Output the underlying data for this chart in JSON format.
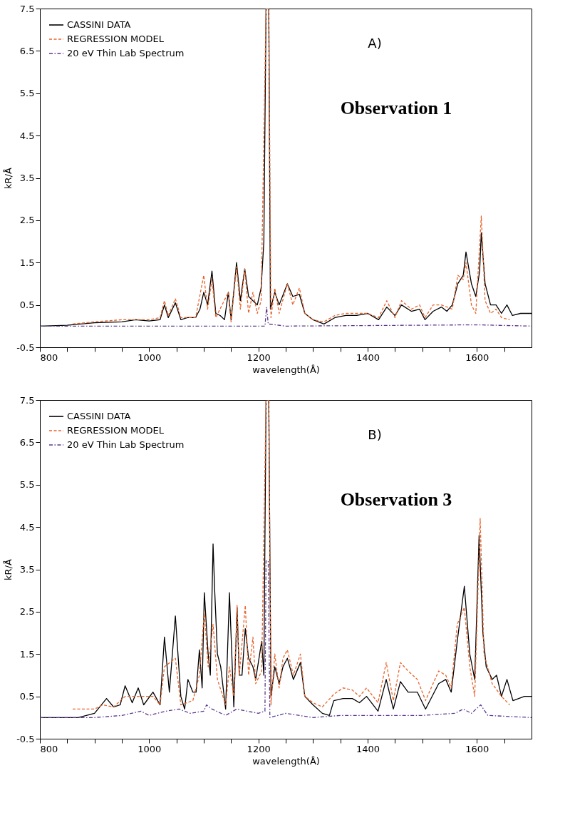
{
  "chart_data": [
    {
      "type": "line",
      "xlabel": "wavelength(Å)",
      "ylabel": "kR/Å",
      "annotations": [
        "A)",
        "Observation 1"
      ],
      "legend": "top left",
      "grid": false,
      "xlim": [
        800,
        1700
      ],
      "ylim": [
        -0.5,
        7.5
      ],
      "xticks": [
        800,
        {
          "value": 850,
          "label": null
        },
        {
          "value": 900,
          "label": null
        },
        {
          "value": 950,
          "label": null
        },
        1000,
        {
          "value": 1050,
          "label": null
        },
        {
          "value": 1100,
          "label": null
        },
        {
          "value": 1150,
          "label": null
        },
        1200,
        {
          "value": 1250,
          "label": null
        },
        {
          "value": 1300,
          "label": null
        },
        {
          "value": 1350,
          "label": null
        },
        1400,
        {
          "value": 1450,
          "label": null
        },
        {
          "value": 1500,
          "label": null
        },
        {
          "value": 1550,
          "label": null
        },
        1600,
        {
          "value": 1650,
          "label": null
        }
      ],
      "yticks": [
        -0.5,
        0.5,
        1.5,
        2.5,
        3.5,
        4.5,
        5.5,
        6.5,
        7.5
      ],
      "series": [
        {
          "name": "CASSINI DATA",
          "color": "#000000",
          "line_style": "solid",
          "x": [
            800,
            850,
            900,
            950,
            975,
            1000,
            1020,
            1028,
            1035,
            1048,
            1058,
            1070,
            1085,
            1093,
            1100,
            1107,
            1115,
            1122,
            1130,
            1138,
            1145,
            1150,
            1160,
            1167,
            1175,
            1182,
            1190,
            1198,
            1205,
            1210,
            1214,
            1219,
            1222,
            1230,
            1238,
            1253,
            1263,
            1275,
            1285,
            1300,
            1320,
            1340,
            1360,
            1380,
            1400,
            1420,
            1435,
            1450,
            1462,
            1480,
            1495,
            1505,
            1520,
            1535,
            1545,
            1555,
            1565,
            1575,
            1580,
            1590,
            1598,
            1605,
            1608,
            1615,
            1625,
            1635,
            1645,
            1655,
            1665,
            1680,
            1700
          ],
          "values": [
            0.0,
            0.02,
            0.08,
            0.1,
            0.15,
            0.12,
            0.15,
            0.5,
            0.2,
            0.55,
            0.15,
            0.2,
            0.2,
            0.4,
            0.8,
            0.5,
            1.3,
            0.3,
            0.25,
            0.15,
            0.8,
            0.15,
            1.5,
            0.6,
            1.35,
            0.7,
            0.6,
            0.5,
            0.9,
            2.0,
            7.5,
            7.5,
            0.4,
            0.8,
            0.5,
            1.0,
            0.7,
            0.75,
            0.3,
            0.15,
            0.05,
            0.2,
            0.25,
            0.25,
            0.3,
            0.15,
            0.45,
            0.25,
            0.5,
            0.35,
            0.4,
            0.15,
            0.35,
            0.45,
            0.35,
            0.5,
            1.0,
            1.2,
            1.75,
            1.0,
            0.7,
            1.3,
            2.2,
            1.0,
            0.5,
            0.5,
            0.3,
            0.5,
            0.25,
            0.3,
            0.3
          ]
        },
        {
          "name": "REGRESSION MODEL",
          "color": "#e8642c",
          "line_style": "dashed",
          "x": [
            860,
            900,
            950,
            1000,
            1020,
            1028,
            1035,
            1048,
            1058,
            1085,
            1100,
            1107,
            1115,
            1122,
            1145,
            1150,
            1160,
            1167,
            1175,
            1182,
            1190,
            1198,
            1205,
            1214,
            1219,
            1223,
            1230,
            1238,
            1253,
            1263,
            1275,
            1285,
            1300,
            1320,
            1340,
            1360,
            1380,
            1400,
            1420,
            1435,
            1450,
            1462,
            1480,
            1495,
            1505,
            1520,
            1535,
            1555,
            1565,
            1575,
            1580,
            1590,
            1598,
            1608,
            1615,
            1625,
            1635,
            1645,
            1660
          ],
          "values": [
            0.05,
            0.1,
            0.15,
            0.15,
            0.2,
            0.6,
            0.25,
            0.65,
            0.2,
            0.2,
            1.2,
            0.4,
            1.1,
            0.2,
            0.8,
            0.1,
            1.4,
            0.4,
            1.35,
            0.3,
            0.8,
            0.3,
            0.6,
            7.5,
            7.5,
            0.2,
            0.9,
            0.3,
            1.0,
            0.5,
            0.9,
            0.3,
            0.15,
            0.1,
            0.25,
            0.3,
            0.3,
            0.3,
            0.2,
            0.6,
            0.2,
            0.6,
            0.4,
            0.5,
            0.2,
            0.5,
            0.5,
            0.4,
            1.2,
            1.1,
            1.5,
            0.5,
            0.3,
            2.6,
            0.6,
            0.3,
            0.4,
            0.2,
            0.15
          ]
        },
        {
          "name": "20 eV Thin Lab  Spectrum",
          "color": "#5b3a8e",
          "line_style": "dotted",
          "x": [
            800,
            1000,
            1212,
            1215,
            1218,
            1250,
            1600,
            1700
          ],
          "values": [
            0.0,
            0.0,
            0.0,
            0.45,
            0.05,
            0.0,
            0.03,
            0.0
          ]
        }
      ]
    },
    {
      "type": "line",
      "xlabel": "wavelength(Å)",
      "ylabel": "kR/Å",
      "annotations": [
        "B)",
        "Observation 3"
      ],
      "legend": "top left",
      "grid": false,
      "xlim": [
        800,
        1700
      ],
      "ylim": [
        -0.5,
        7.5
      ],
      "xticks": [
        800,
        {
          "value": 850,
          "label": null
        },
        {
          "value": 900,
          "label": null
        },
        {
          "value": 950,
          "label": null
        },
        1000,
        {
          "value": 1050,
          "label": null
        },
        {
          "value": 1100,
          "label": null
        },
        {
          "value": 1150,
          "label": null
        },
        1200,
        {
          "value": 1250,
          "label": null
        },
        {
          "value": 1300,
          "label": null
        },
        {
          "value": 1350,
          "label": null
        },
        1400,
        {
          "value": 1450,
          "label": null
        },
        {
          "value": 1500,
          "label": null
        },
        {
          "value": 1550,
          "label": null
        },
        1600,
        {
          "value": 1650,
          "label": null
        }
      ],
      "yticks": [
        -0.5,
        0.5,
        1.5,
        2.5,
        3.5,
        4.5,
        5.5,
        6.5,
        7.5
      ],
      "series": [
        {
          "name": "CASSINI DATA",
          "color": "#000000",
          "line_style": "solid",
          "x": [
            800,
            870,
            900,
            922,
            935,
            947,
            956,
            969,
            980,
            990,
            1007,
            1020,
            1028,
            1037,
            1048,
            1058,
            1065,
            1071,
            1080,
            1086,
            1092,
            1097,
            1101,
            1108,
            1112,
            1117,
            1120,
            1125,
            1131,
            1140,
            1147,
            1155,
            1161,
            1165,
            1170,
            1176,
            1182,
            1190,
            1195,
            1206,
            1210,
            1214,
            1219,
            1223,
            1230,
            1238,
            1245,
            1253,
            1264,
            1277,
            1285,
            1300,
            1317,
            1330,
            1338,
            1355,
            1372,
            1385,
            1398,
            1419,
            1434,
            1447,
            1460,
            1474,
            1491,
            1506,
            1530,
            1543,
            1553,
            1564,
            1577,
            1587,
            1596,
            1604,
            1611,
            1617,
            1628,
            1636,
            1645,
            1655,
            1666,
            1687,
            1700
          ],
          "values": [
            0.0,
            0.0,
            0.1,
            0.45,
            0.25,
            0.3,
            0.75,
            0.35,
            0.7,
            0.3,
            0.6,
            0.3,
            1.9,
            0.6,
            2.4,
            0.5,
            0.2,
            0.9,
            0.6,
            0.6,
            1.6,
            0.7,
            2.95,
            1.5,
            1.0,
            4.1,
            3.0,
            1.5,
            1.2,
            0.2,
            2.95,
            0.25,
            2.6,
            1.0,
            1.0,
            2.1,
            1.4,
            1.2,
            0.9,
            1.8,
            1.0,
            7.5,
            7.5,
            0.5,
            1.2,
            0.8,
            1.2,
            1.4,
            0.9,
            1.3,
            0.5,
            0.3,
            0.1,
            0.05,
            0.4,
            0.45,
            0.45,
            0.35,
            0.5,
            0.15,
            0.9,
            0.2,
            0.85,
            0.6,
            0.6,
            0.2,
            0.8,
            0.9,
            0.6,
            1.8,
            3.1,
            1.5,
            0.9,
            4.3,
            2.0,
            1.2,
            0.9,
            1.0,
            0.5,
            0.9,
            0.4,
            0.5,
            0.5
          ]
        },
        {
          "name": "REGRESSION MODEL",
          "color": "#e8642c",
          "line_style": "dashed",
          "x": [
            860,
            900,
            915,
            935,
            956,
            980,
            1007,
            1020,
            1028,
            1048,
            1058,
            1080,
            1092,
            1101,
            1108,
            1117,
            1125,
            1140,
            1147,
            1155,
            1161,
            1165,
            1176,
            1182,
            1190,
            1195,
            1206,
            1214,
            1219,
            1223,
            1230,
            1238,
            1245,
            1253,
            1264,
            1277,
            1285,
            1300,
            1317,
            1338,
            1355,
            1372,
            1385,
            1398,
            1419,
            1434,
            1447,
            1460,
            1474,
            1491,
            1506,
            1530,
            1543,
            1553,
            1564,
            1577,
            1587,
            1596,
            1606,
            1613,
            1628,
            1645,
            1660
          ],
          "values": [
            0.2,
            0.2,
            0.3,
            0.25,
            0.5,
            0.5,
            0.5,
            0.3,
            1.2,
            1.4,
            0.3,
            0.4,
            1.0,
            2.5,
            1.2,
            2.2,
            0.9,
            0.3,
            1.2,
            0.5,
            2.65,
            1.0,
            2.65,
            1.0,
            1.9,
            0.8,
            1.1,
            7.5,
            7.5,
            0.3,
            1.5,
            0.7,
            1.4,
            1.6,
            1.0,
            1.5,
            0.5,
            0.35,
            0.25,
            0.55,
            0.7,
            0.65,
            0.5,
            0.7,
            0.35,
            1.3,
            0.4,
            1.3,
            1.1,
            0.9,
            0.4,
            1.1,
            1.0,
            0.7,
            2.2,
            2.6,
            1.2,
            0.5,
            4.7,
            1.5,
            0.8,
            0.5,
            0.3
          ]
        },
        {
          "name": "20 eV Thin Lab Spectrum",
          "color": "#5b3a8e",
          "line_style": "dotted",
          "x": [
            800,
            900,
            950,
            985,
            1000,
            1030,
            1055,
            1075,
            1100,
            1105,
            1115,
            1140,
            1160,
            1180,
            1200,
            1212,
            1214,
            1218,
            1221,
            1250,
            1300,
            1350,
            1400,
            1450,
            1500,
            1560,
            1575,
            1590,
            1607,
            1620,
            1700
          ],
          "values": [
            0.0,
            0.0,
            0.05,
            0.15,
            0.05,
            0.15,
            0.2,
            0.1,
            0.15,
            0.3,
            0.2,
            0.05,
            0.2,
            0.15,
            0.1,
            0.15,
            3.7,
            3.7,
            0.0,
            0.1,
            0.0,
            0.05,
            0.05,
            0.05,
            0.05,
            0.1,
            0.2,
            0.1,
            0.3,
            0.05,
            0.0
          ]
        }
      ]
    }
  ]
}
